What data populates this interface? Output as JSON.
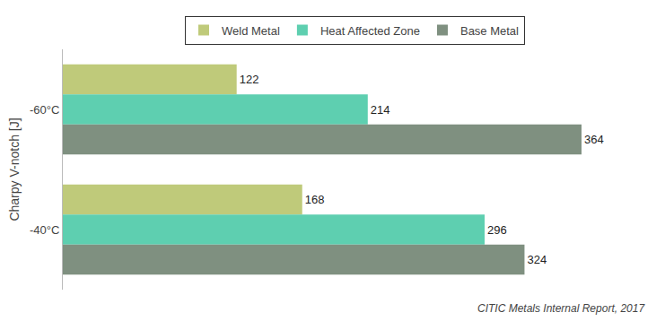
{
  "chart_data": {
    "type": "bar",
    "orientation": "horizontal",
    "categories": [
      "-60°C",
      "-40°C"
    ],
    "series": [
      {
        "name": "Weld Metal",
        "color": "#bfca7a",
        "values": [
          122,
          168
        ]
      },
      {
        "name": "Heat Affected Zone",
        "color": "#5ecfb0",
        "values": [
          214,
          296
        ]
      },
      {
        "name": "Base Metal",
        "color": "#7f9080",
        "values": [
          364,
          324
        ]
      }
    ],
    "ylabel": "Charpy V-notch [J]",
    "annotation": "CITIC Metals Internal Report, 2017",
    "xlim": [
      0,
      410
    ],
    "data_labels": true,
    "tick_labels": "y",
    "grid": false,
    "legend": "top"
  }
}
